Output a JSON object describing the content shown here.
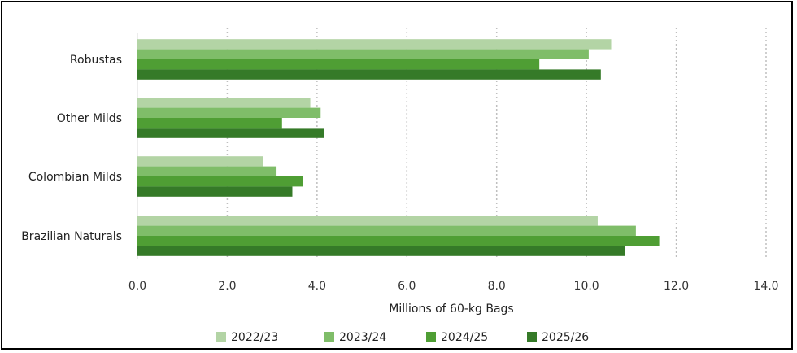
{
  "chart_data": {
    "type": "bar",
    "orientation": "horizontal",
    "title": "",
    "xlabel": "Millions of 60-kg Bags",
    "ylabel": "",
    "categories": [
      "Robustas",
      "Other Milds",
      "Colombian Milds",
      "Brazilian Naturals"
    ],
    "xlim": [
      0,
      14
    ],
    "xticks": [
      "0.0",
      "2.0",
      "4.0",
      "6.0",
      "8.0",
      "10.0",
      "12.0",
      "14.0"
    ],
    "grid": "vertical-dotted",
    "legend_position": "bottom",
    "series": [
      {
        "name": "2022/23",
        "color": "#b3d4a5",
        "values": [
          10.55,
          3.85,
          2.8,
          10.25
        ]
      },
      {
        "name": "2023/24",
        "color": "#7fbd69",
        "values": [
          10.05,
          4.08,
          3.08,
          11.1
        ]
      },
      {
        "name": "2024/25",
        "color": "#4f9e34",
        "values": [
          8.95,
          3.22,
          3.68,
          11.62
        ]
      },
      {
        "name": "2025/26",
        "color": "#357a28",
        "values": [
          10.32,
          4.15,
          3.45,
          10.85
        ]
      }
    ]
  }
}
